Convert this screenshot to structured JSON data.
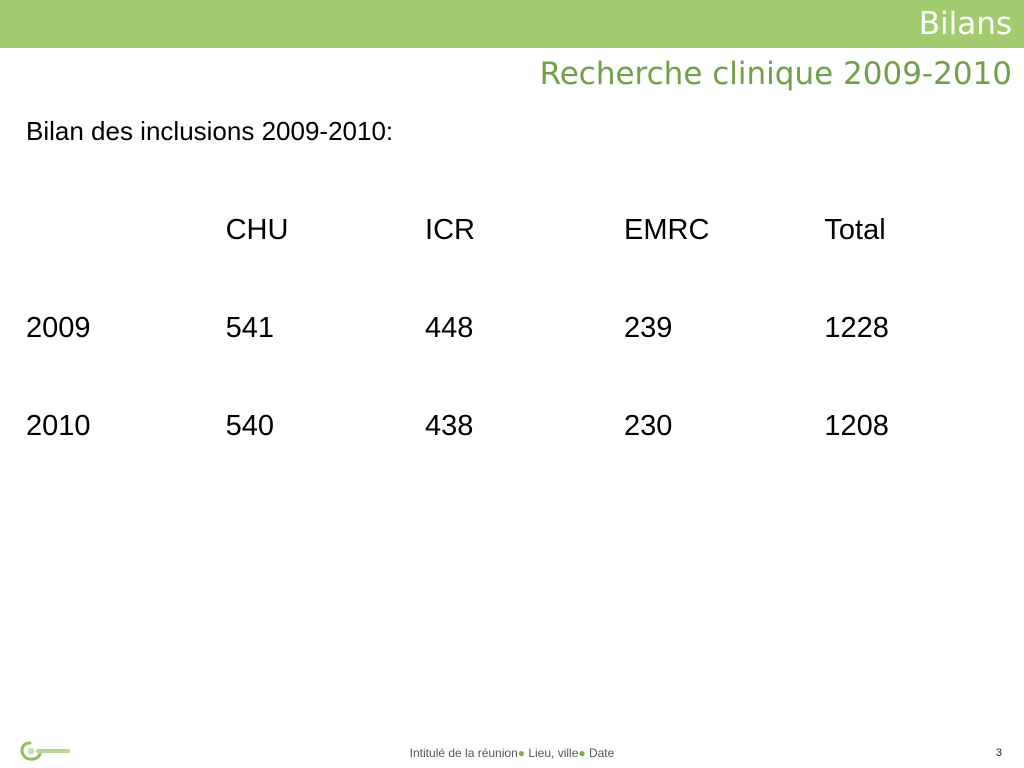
{
  "header": {
    "band_title": "Bilans",
    "subtitle": "Recherche clinique 2009-2010",
    "band_color": "#a1cb6e",
    "subtitle_color": "#70a048"
  },
  "content": {
    "section_title": "Bilan des inclusions 2009-2010:",
    "table": {
      "columns": [
        "",
        "CHU",
        "ICR",
        "EMRC",
        "Total"
      ],
      "rows": [
        [
          "2009",
          "541",
          "448",
          "239",
          "1228"
        ],
        [
          "2010",
          "540",
          "438",
          "230",
          "1208"
        ]
      ]
    }
  },
  "footer": {
    "logo_icon": "oncomip-logo",
    "meeting": "Intitulé de la réunion",
    "sep1": "●",
    "place": " Lieu, ville",
    "sep2": "●",
    "date": " Date",
    "page_number": "3"
  }
}
